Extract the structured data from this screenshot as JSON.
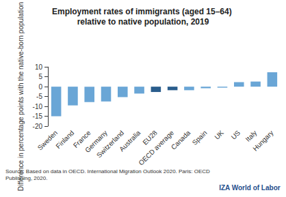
{
  "chart_data": {
    "type": "bar",
    "title": "Employment rates of immigrants (aged 15–64) relative to native population, 2019",
    "y_label": "Difference in percentage points with the native-born population",
    "categories": [
      "Sweden",
      "Finland",
      "France",
      "Germany",
      "Switzerland",
      "Australia",
      "EU28",
      "OECD average",
      "Canada",
      "Spain",
      "UK",
      "US",
      "Italy",
      "Hungary"
    ],
    "values": [
      -15,
      -9.5,
      -7.8,
      -7.5,
      -5.3,
      -3.5,
      -2.7,
      -1.8,
      -1.8,
      -0.8,
      -0.5,
      2.3,
      2.6,
      7.3
    ],
    "colors": [
      "#6aa6d6",
      "#6aa6d6",
      "#6aa6d6",
      "#6aa6d6",
      "#6aa6d6",
      "#6aa6d6",
      "#2a5d8c",
      "#2a5d8c",
      "#6aa6d6",
      "#6aa6d6",
      "#6aa6d6",
      "#6aa6d6",
      "#6aa6d6",
      "#6aa6d6"
    ],
    "ylim": [
      -20,
      10
    ],
    "yticks": [
      -20,
      -15,
      -10,
      -5,
      0,
      5,
      10
    ],
    "grid": false,
    "annotations": [
      "Source: Based on data in OECD. International Migration Outlook 2020. Paris: OECD Publishing, 2020.",
      "IZA World of Labor"
    ]
  }
}
